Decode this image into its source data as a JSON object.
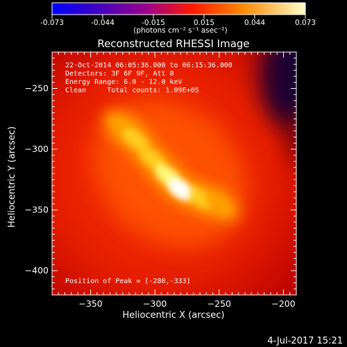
{
  "chart_data": {
    "type": "heatmap",
    "title": "Reconstructed RHESSI Image",
    "xlabel": "Heliocentric X (arcsec)",
    "ylabel": "Heliocentric Y (arcsec)",
    "xlim": [
      -380,
      -190
    ],
    "ylim": [
      -420,
      -220
    ],
    "xticks": [
      -350,
      -300,
      -250,
      -200
    ],
    "yticks": [
      -250,
      -300,
      -350,
      -400
    ],
    "colorbar": {
      "min": -0.073,
      "max": 0.073,
      "ticks": [
        "-0.073",
        "-0.044",
        "-0.015",
        "0.015",
        "0.044",
        "0.073"
      ],
      "label": "(photons cm⁻² s⁻¹ asec⁻²)"
    },
    "annotations": [
      "22-Oct-2014 06:05:36.000 to 06:15:36.000",
      "Detectors: 3F 6F 9F, Att 0",
      "Energy Range: 6.0 - 12.0 keV",
      "Clean     Total counts: 1.09E+05"
    ],
    "peak_label": "Position of Peak = [-280,-333]",
    "peak": {
      "x": -280,
      "y": -333
    },
    "ridge": [
      {
        "x": -325,
        "y": -282,
        "v": 0.05
      },
      {
        "x": -315,
        "y": -292,
        "v": 0.055
      },
      {
        "x": -302,
        "y": -308,
        "v": 0.058
      },
      {
        "x": -290,
        "y": -322,
        "v": 0.062
      },
      {
        "x": -280,
        "y": -333,
        "v": 0.073
      },
      {
        "x": -265,
        "y": -340,
        "v": 0.06
      },
      {
        "x": -250,
        "y": -345,
        "v": 0.048
      }
    ]
  },
  "footer": {
    "date": "4-Jul-2017 15:21"
  }
}
